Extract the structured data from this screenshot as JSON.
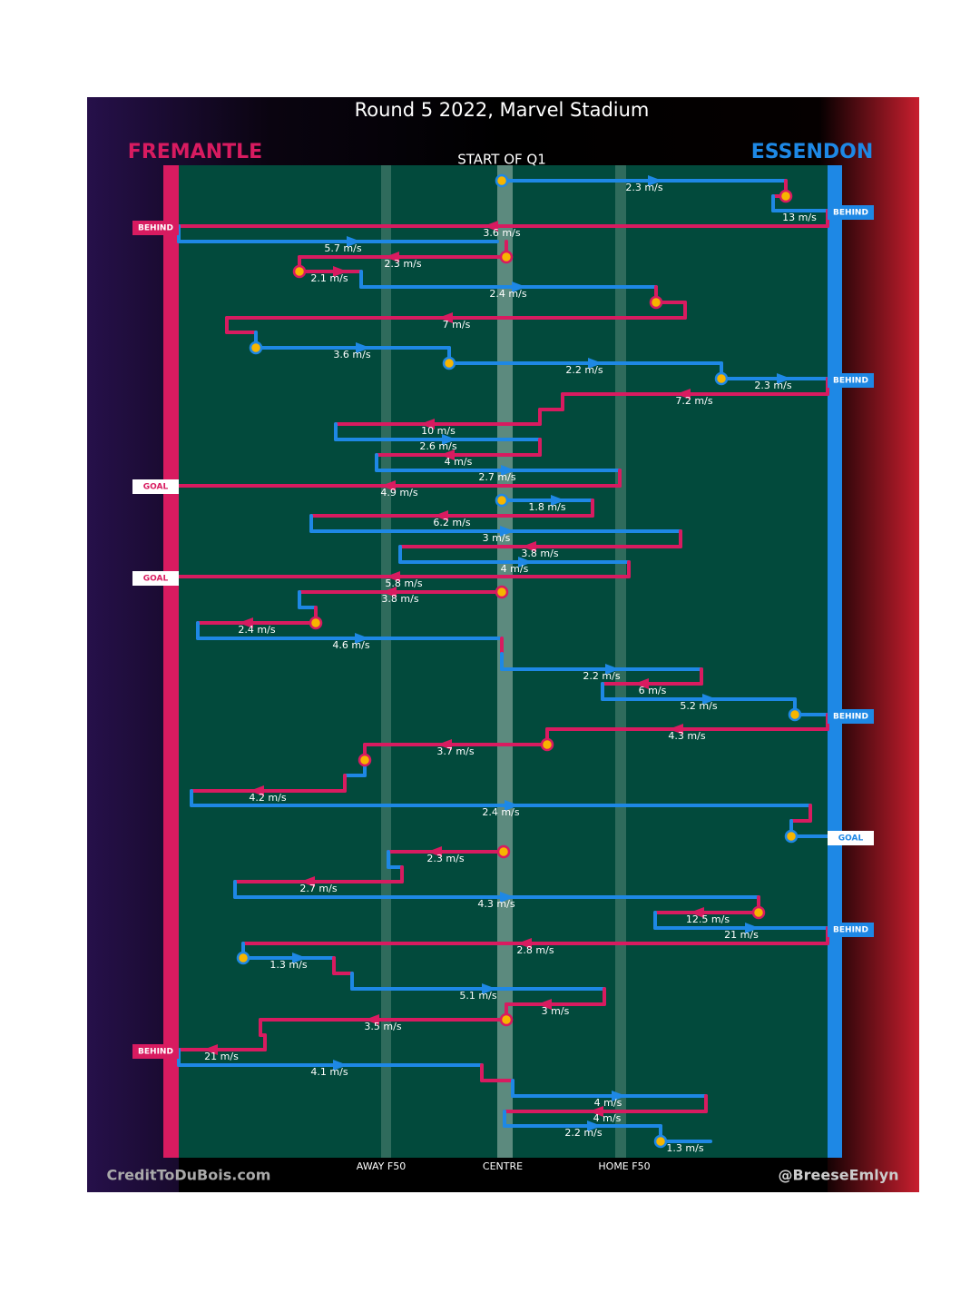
{
  "title": "Round 5 2022, Marvel Stadium",
  "teams": [
    "FREMANTLE",
    "ESSENDON"
  ],
  "quarter": "START OF Q1",
  "field_labels": [
    "AWAY F50",
    "CENTRE",
    "HOME F50"
  ],
  "credits": [
    "CreditToDuBois.com",
    "@BreeseEmlyn"
  ],
  "events": [
    "BEHIND",
    "BEHIND",
    "BEHIND",
    "GOAL",
    "GOAL",
    "BEHIND",
    "GOAL",
    "BEHIND",
    "BEHIND"
  ],
  "speeds": [
    "2.3 m/s",
    "13 m/s",
    "3.6 m/s",
    "5.7 m/s",
    "2.3 m/s",
    "2.1 m/s",
    "2.4 m/s",
    "7 m/s",
    "3.6 m/s",
    "2.2 m/s",
    "2.3 m/s",
    "7.2 m/s",
    "10 m/s",
    "2.6 m/s",
    "4 m/s",
    "2.7 m/s",
    "4.9 m/s",
    "1.8 m/s",
    "6.2 m/s",
    "3 m/s",
    "3.8 m/s",
    "4 m/s",
    "5.8 m/s",
    "3.8 m/s",
    "2.4 m/s",
    "4.6 m/s",
    "2.2 m/s",
    "6 m/s",
    "5.2 m/s",
    "4.3 m/s",
    "3.7 m/s",
    "4.2 m/s",
    "2.4 m/s",
    "2.3 m/s",
    "2.7 m/s",
    "4.3 m/s",
    "12.5 m/s",
    "21 m/s",
    "2.8 m/s",
    "1.3 m/s",
    "5.1 m/s",
    "3 m/s",
    "3.5 m/s",
    "21 m/s",
    "4.1 m/s",
    "4 m/s",
    "4 m/s",
    "2.2 m/s",
    "1.3 m/s"
  ]
}
